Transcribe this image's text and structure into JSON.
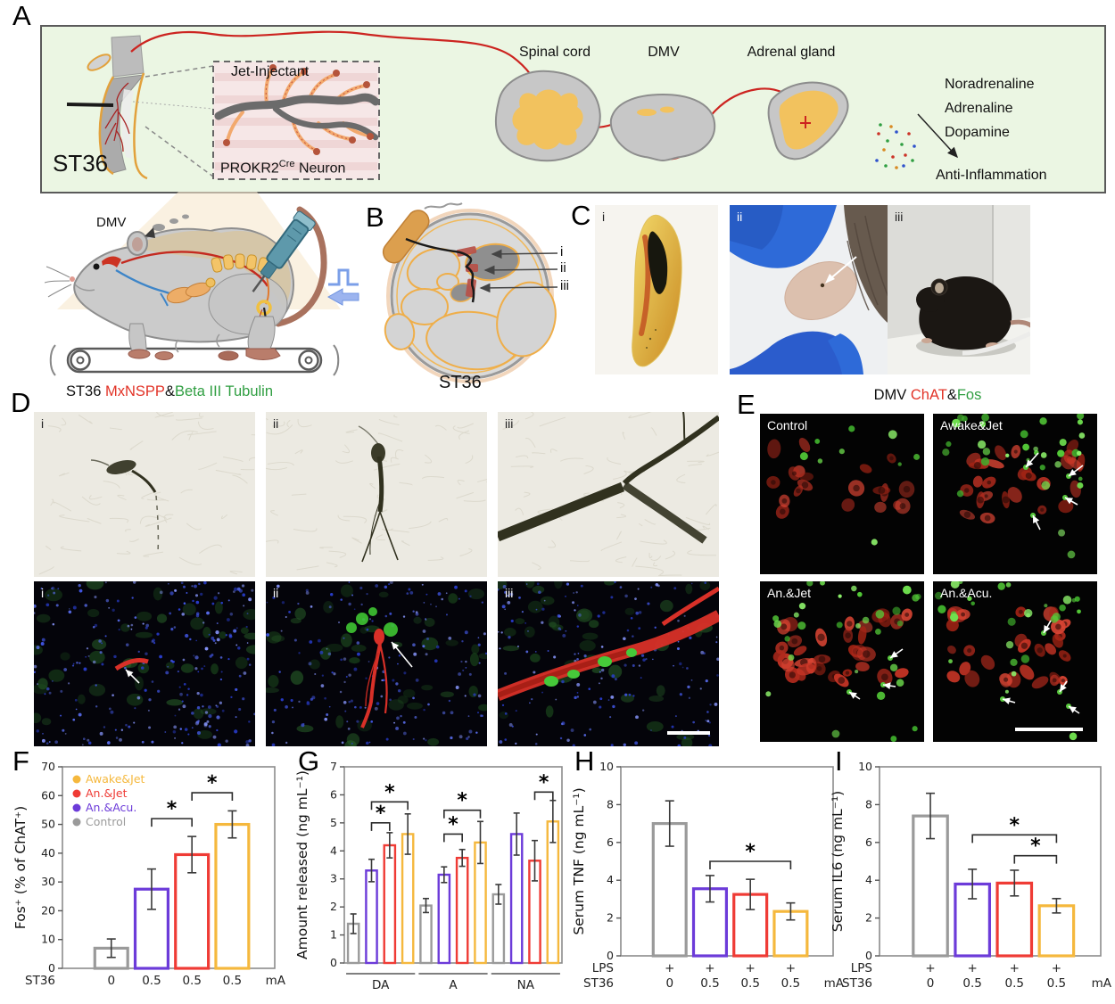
{
  "colors": {
    "awake_jet": "#F5B83D",
    "an_jet": "#EF3B35",
    "an_acu": "#6C3BD9",
    "control": "#9A9A9A",
    "header_red": "#E23327",
    "header_green": "#2F9E41",
    "panel_a_bg": "#EBF6E3"
  },
  "panel_a": {
    "label": "A",
    "st36": "ST36",
    "inset_title": "Jet-Injectant",
    "neuron_base": "PROKR2",
    "neuron_sup": "Cre",
    "neuron_rest": " Neuron",
    "spinal_cord": "Spinal cord",
    "dmv": "DMV",
    "adrenal": "Adrenal gland",
    "hormones": [
      "Noradrenaline",
      "Adrenaline",
      "Dopamine"
    ],
    "anti": "Anti-Inflammation"
  },
  "mouse": {
    "dmv": "DMV"
  },
  "panel_b": {
    "label": "B",
    "st36": "ST36",
    "markers": [
      "i",
      "ii",
      "iii"
    ]
  },
  "panel_c": {
    "label": "C",
    "subs": [
      "i",
      "ii",
      "iii"
    ]
  },
  "panel_d": {
    "label": "D",
    "title_prefix": "ST36 ",
    "title_red": "MxNSPP",
    "title_amp": "&",
    "title_green": "Beta III Tubulin",
    "subs": [
      "i",
      "ii",
      "iii"
    ]
  },
  "panel_e": {
    "label": "E",
    "title_prefix": "DMV ",
    "title_red": "ChAT",
    "title_amp": "&",
    "title_green": "Fos",
    "images": [
      "Control",
      "Awake&Jet",
      "An.&Jet",
      "An.&Acu."
    ]
  },
  "chart_data": [
    {
      "id": "F",
      "type": "bar",
      "panel_label": "F",
      "ylabel": "Fos⁺ (% of ChAT⁺)",
      "ylim": [
        0,
        70
      ],
      "ytick": 10,
      "mb": 40,
      "bw": 3.2,
      "cap": 10,
      "bar_colors": [
        "#9A9A9A",
        "#6C3BD9",
        "#EF3B35",
        "#F5B83D"
      ],
      "legend": [
        {
          "label": "Awake&Jet",
          "color": "#F5B83D"
        },
        {
          "label": "An.&Jet",
          "color": "#EF3B35"
        },
        {
          "label": "An.&Acu.",
          "color": "#6C3BD9"
        },
        {
          "label": "Control",
          "color": "#9A9A9A"
        }
      ],
      "groups": [
        {
          "label": "",
          "values": [
            7,
            27.5,
            39.5,
            50
          ],
          "errors": [
            3.2,
            7,
            6.3,
            4.7
          ]
        }
      ],
      "brackets": [
        {
          "from": [
            0,
            1
          ],
          "to": [
            0,
            2
          ],
          "y": 52,
          "label": "*"
        },
        {
          "from": [
            0,
            2
          ],
          "to": [
            0,
            3
          ],
          "y": 61,
          "label": "*"
        }
      ],
      "xrows": [
        {
          "label": "ST36",
          "cells": [
            "0",
            "0.5",
            "0.5",
            "0.5"
          ],
          "suffix": "mA"
        }
      ]
    },
    {
      "id": "G",
      "type": "bar",
      "panel_label": "G",
      "ylabel": "Amount released (ng mL⁻¹)",
      "ylim": [
        0,
        7
      ],
      "ytick": 1,
      "mb": 46,
      "bw": 2.4,
      "cap": 7,
      "bar_colors": [
        "#9A9A9A",
        "#6C3BD9",
        "#EF3B35",
        "#F5B83D"
      ],
      "group_labels": true,
      "groups": [
        {
          "label": "DA",
          "values": [
            1.4,
            3.3,
            4.2,
            4.6
          ],
          "errors": [
            0.35,
            0.4,
            0.45,
            0.72
          ]
        },
        {
          "label": "A",
          "values": [
            2.05,
            3.15,
            3.75,
            4.3
          ],
          "errors": [
            0.25,
            0.28,
            0.3,
            0.75
          ]
        },
        {
          "label": "NA",
          "values": [
            2.45,
            4.6,
            3.65,
            5.05
          ],
          "errors": [
            0.35,
            0.75,
            0.72,
            0.75
          ]
        }
      ],
      "brackets": [
        {
          "from": [
            0,
            1
          ],
          "to": [
            0,
            2
          ],
          "y": 5.0,
          "label": "*"
        },
        {
          "from": [
            0,
            1
          ],
          "to": [
            0,
            3
          ],
          "y": 5.75,
          "label": "*"
        },
        {
          "from": [
            1,
            1
          ],
          "to": [
            1,
            2
          ],
          "y": 4.6,
          "label": "*"
        },
        {
          "from": [
            1,
            1
          ],
          "to": [
            1,
            3
          ],
          "y": 5.45,
          "label": "*"
        },
        {
          "from": [
            2,
            2
          ],
          "to": [
            2,
            3
          ],
          "y": 6.1,
          "label": "*"
        }
      ]
    },
    {
      "id": "H",
      "type": "bar",
      "panel_label": "H",
      "ylabel": "Serum TNF (ng mL⁻¹)",
      "ylim": [
        0,
        10
      ],
      "ytick": 2,
      "mb": 54,
      "bw": 3.2,
      "cap": 10,
      "bar_colors": [
        "#9A9A9A",
        "#6C3BD9",
        "#EF3B35",
        "#F5B83D"
      ],
      "groups": [
        {
          "label": "",
          "values": [
            7.0,
            3.55,
            3.25,
            2.35
          ],
          "errors": [
            1.2,
            0.7,
            0.8,
            0.45
          ]
        }
      ],
      "brackets": [
        {
          "from": [
            0,
            1
          ],
          "to": [
            0,
            3
          ],
          "y": 5.0,
          "label": "*"
        }
      ],
      "xrows": [
        {
          "label": "LPS",
          "cells": [
            "+",
            "+",
            "+",
            "+"
          ]
        },
        {
          "label": "ST36",
          "cells": [
            "0",
            "0.5",
            "0.5",
            "0.5"
          ],
          "suffix": "mA"
        }
      ]
    },
    {
      "id": "I",
      "type": "bar",
      "panel_label": "I",
      "ylabel": "Serum IL6 (ng mL⁻¹)",
      "ylim": [
        0,
        10
      ],
      "ytick": 2,
      "mb": 54,
      "bw": 3.2,
      "cap": 10,
      "bar_colors": [
        "#9A9A9A",
        "#6C3BD9",
        "#EF3B35",
        "#F5B83D"
      ],
      "groups": [
        {
          "label": "",
          "values": [
            7.4,
            3.8,
            3.85,
            2.65
          ],
          "errors": [
            1.2,
            0.78,
            0.68,
            0.38
          ]
        }
      ],
      "brackets": [
        {
          "from": [
            0,
            1
          ],
          "to": [
            0,
            3
          ],
          "y": 6.4,
          "label": "*"
        },
        {
          "from": [
            0,
            2
          ],
          "to": [
            0,
            3
          ],
          "y": 5.3,
          "label": "*"
        }
      ],
      "xrows": [
        {
          "label": "LPS",
          "cells": [
            "+",
            "+",
            "+",
            "+"
          ]
        },
        {
          "label": "ST36",
          "cells": [
            "0",
            "0.5",
            "0.5",
            "0.5"
          ],
          "suffix": "mA"
        }
      ]
    }
  ]
}
